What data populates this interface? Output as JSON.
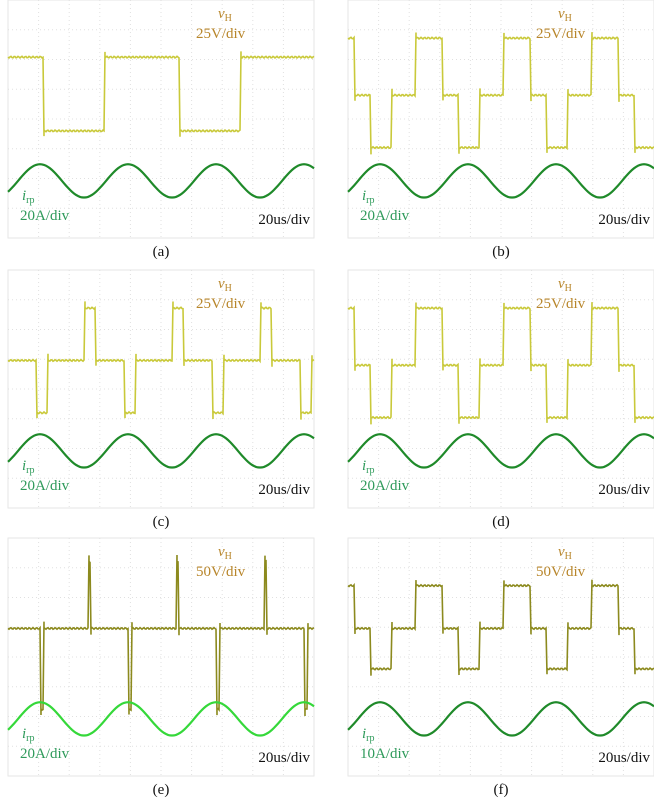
{
  "panels": [
    {
      "caption": "(a)",
      "voltage": {
        "symbol": "v",
        "subscript": "H",
        "scale": "25V/div"
      },
      "current": {
        "symbol": "i",
        "subscript": "rp",
        "scale": "20A/div"
      },
      "time_scale": "20us/div"
    },
    {
      "caption": "(b)",
      "voltage": {
        "symbol": "v",
        "subscript": "H",
        "scale": "25V/div"
      },
      "current": {
        "symbol": "i",
        "subscript": "rp",
        "scale": "20A/div"
      },
      "time_scale": "20us/div"
    },
    {
      "caption": "(c)",
      "voltage": {
        "symbol": "v",
        "subscript": "H",
        "scale": "25V/div"
      },
      "current": {
        "symbol": "i",
        "subscript": "rp",
        "scale": "20A/div"
      },
      "time_scale": "20us/div"
    },
    {
      "caption": "(d)",
      "voltage": {
        "symbol": "v",
        "subscript": "H",
        "scale": "25V/div"
      },
      "current": {
        "symbol": "i",
        "subscript": "rp",
        "scale": "20A/div"
      },
      "time_scale": "20us/div"
    },
    {
      "caption": "(e)",
      "voltage": {
        "symbol": "v",
        "subscript": "H",
        "scale": "50V/div"
      },
      "current": {
        "symbol": "i",
        "subscript": "rp",
        "scale": "20A/div"
      },
      "time_scale": "20us/div"
    },
    {
      "caption": "(f)",
      "voltage": {
        "symbol": "v",
        "subscript": "H",
        "scale": "50V/div"
      },
      "current": {
        "symbol": "i",
        "subscript": "rp",
        "scale": "10A/div"
      },
      "time_scale": "20us/div"
    }
  ]
}
